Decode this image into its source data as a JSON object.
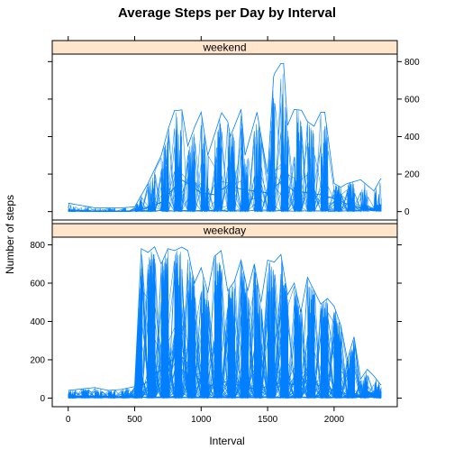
{
  "chart_data": {
    "type": "line",
    "title": "Average Steps per Day by Interval",
    "xlabel": "Interval",
    "ylabel": "Number of steps",
    "xlim": [
      -120,
      2475
    ],
    "ylim": [
      -45,
      840
    ],
    "x_ticks": [
      0,
      500,
      1000,
      1500,
      2000
    ],
    "y_ticks": [
      0,
      200,
      400,
      600,
      800
    ],
    "panel_layout": "two panels stacked vertically, shared x axis; strip label at top of each panel",
    "grid": false,
    "line_color": "#0080ff",
    "strip_fill": "#ffe5cc",
    "panels": [
      {
        "name": "weekend",
        "approx_envelope_max": [
          [
            0,
            45
          ],
          [
            200,
            20
          ],
          [
            400,
            20
          ],
          [
            500,
            25
          ],
          [
            600,
            150
          ],
          [
            700,
            300
          ],
          [
            790,
            540
          ],
          [
            830,
            540
          ],
          [
            870,
            545
          ],
          [
            900,
            350
          ],
          [
            950,
            450
          ],
          [
            1000,
            530
          ],
          [
            1050,
            300
          ],
          [
            1150,
            520
          ],
          [
            1180,
            560
          ],
          [
            1220,
            400
          ],
          [
            1300,
            545
          ],
          [
            1330,
            300
          ],
          [
            1420,
            530
          ],
          [
            1500,
            200
          ],
          [
            1545,
            720
          ],
          [
            1580,
            790
          ],
          [
            1620,
            790
          ],
          [
            1650,
            460
          ],
          [
            1700,
            545
          ],
          [
            1760,
            540
          ],
          [
            1800,
            480
          ],
          [
            1850,
            455
          ],
          [
            1890,
            530
          ],
          [
            1930,
            530
          ],
          [
            2000,
            150
          ],
          [
            2050,
            130
          ],
          [
            2100,
            150
          ],
          [
            2200,
            170
          ],
          [
            2300,
            110
          ],
          [
            2350,
            175
          ]
        ],
        "approx_mean": [
          [
            0,
            2
          ],
          [
            300,
            1
          ],
          [
            500,
            3
          ],
          [
            600,
            20
          ],
          [
            700,
            50
          ],
          [
            800,
            130
          ],
          [
            850,
            170
          ],
          [
            900,
            150
          ],
          [
            1000,
            100
          ],
          [
            1100,
            90
          ],
          [
            1200,
            140
          ],
          [
            1300,
            120
          ],
          [
            1400,
            110
          ],
          [
            1500,
            100
          ],
          [
            1600,
            160
          ],
          [
            1700,
            110
          ],
          [
            1800,
            100
          ],
          [
            1900,
            90
          ],
          [
            2000,
            70
          ],
          [
            2100,
            40
          ],
          [
            2200,
            20
          ],
          [
            2350,
            3
          ]
        ]
      },
      {
        "name": "weekday",
        "approx_envelope_max": [
          [
            0,
            40
          ],
          [
            200,
            55
          ],
          [
            300,
            40
          ],
          [
            400,
            45
          ],
          [
            500,
            60
          ],
          [
            550,
            780
          ],
          [
            600,
            760
          ],
          [
            650,
            790
          ],
          [
            700,
            700
          ],
          [
            750,
            780
          ],
          [
            800,
            770
          ],
          [
            860,
            790
          ],
          [
            900,
            770
          ],
          [
            950,
            600
          ],
          [
            1000,
            680
          ],
          [
            1050,
            550
          ],
          [
            1100,
            740
          ],
          [
            1150,
            770
          ],
          [
            1200,
            560
          ],
          [
            1250,
            610
          ],
          [
            1300,
            720
          ],
          [
            1350,
            560
          ],
          [
            1400,
            700
          ],
          [
            1450,
            500
          ],
          [
            1500,
            720
          ],
          [
            1550,
            710
          ],
          [
            1600,
            750
          ],
          [
            1650,
            540
          ],
          [
            1700,
            600
          ],
          [
            1750,
            450
          ],
          [
            1800,
            630
          ],
          [
            1850,
            560
          ],
          [
            1900,
            490
          ],
          [
            1950,
            520
          ],
          [
            2000,
            480
          ],
          [
            2050,
            380
          ],
          [
            2100,
            200
          ],
          [
            2150,
            320
          ],
          [
            2200,
            100
          ],
          [
            2250,
            150
          ],
          [
            2300,
            115
          ],
          [
            2350,
            70
          ]
        ],
        "approx_mean": [
          [
            0,
            5
          ],
          [
            300,
            2
          ],
          [
            500,
            8
          ],
          [
            550,
            60
          ],
          [
            650,
            120
          ],
          [
            750,
            180
          ],
          [
            835,
            230
          ],
          [
            900,
            180
          ],
          [
            1000,
            80
          ],
          [
            1100,
            60
          ],
          [
            1200,
            90
          ],
          [
            1300,
            60
          ],
          [
            1400,
            50
          ],
          [
            1500,
            60
          ],
          [
            1600,
            80
          ],
          [
            1700,
            70
          ],
          [
            1800,
            90
          ],
          [
            1900,
            60
          ],
          [
            2000,
            40
          ],
          [
            2100,
            20
          ],
          [
            2200,
            10
          ],
          [
            2350,
            3
          ]
        ]
      }
    ]
  }
}
